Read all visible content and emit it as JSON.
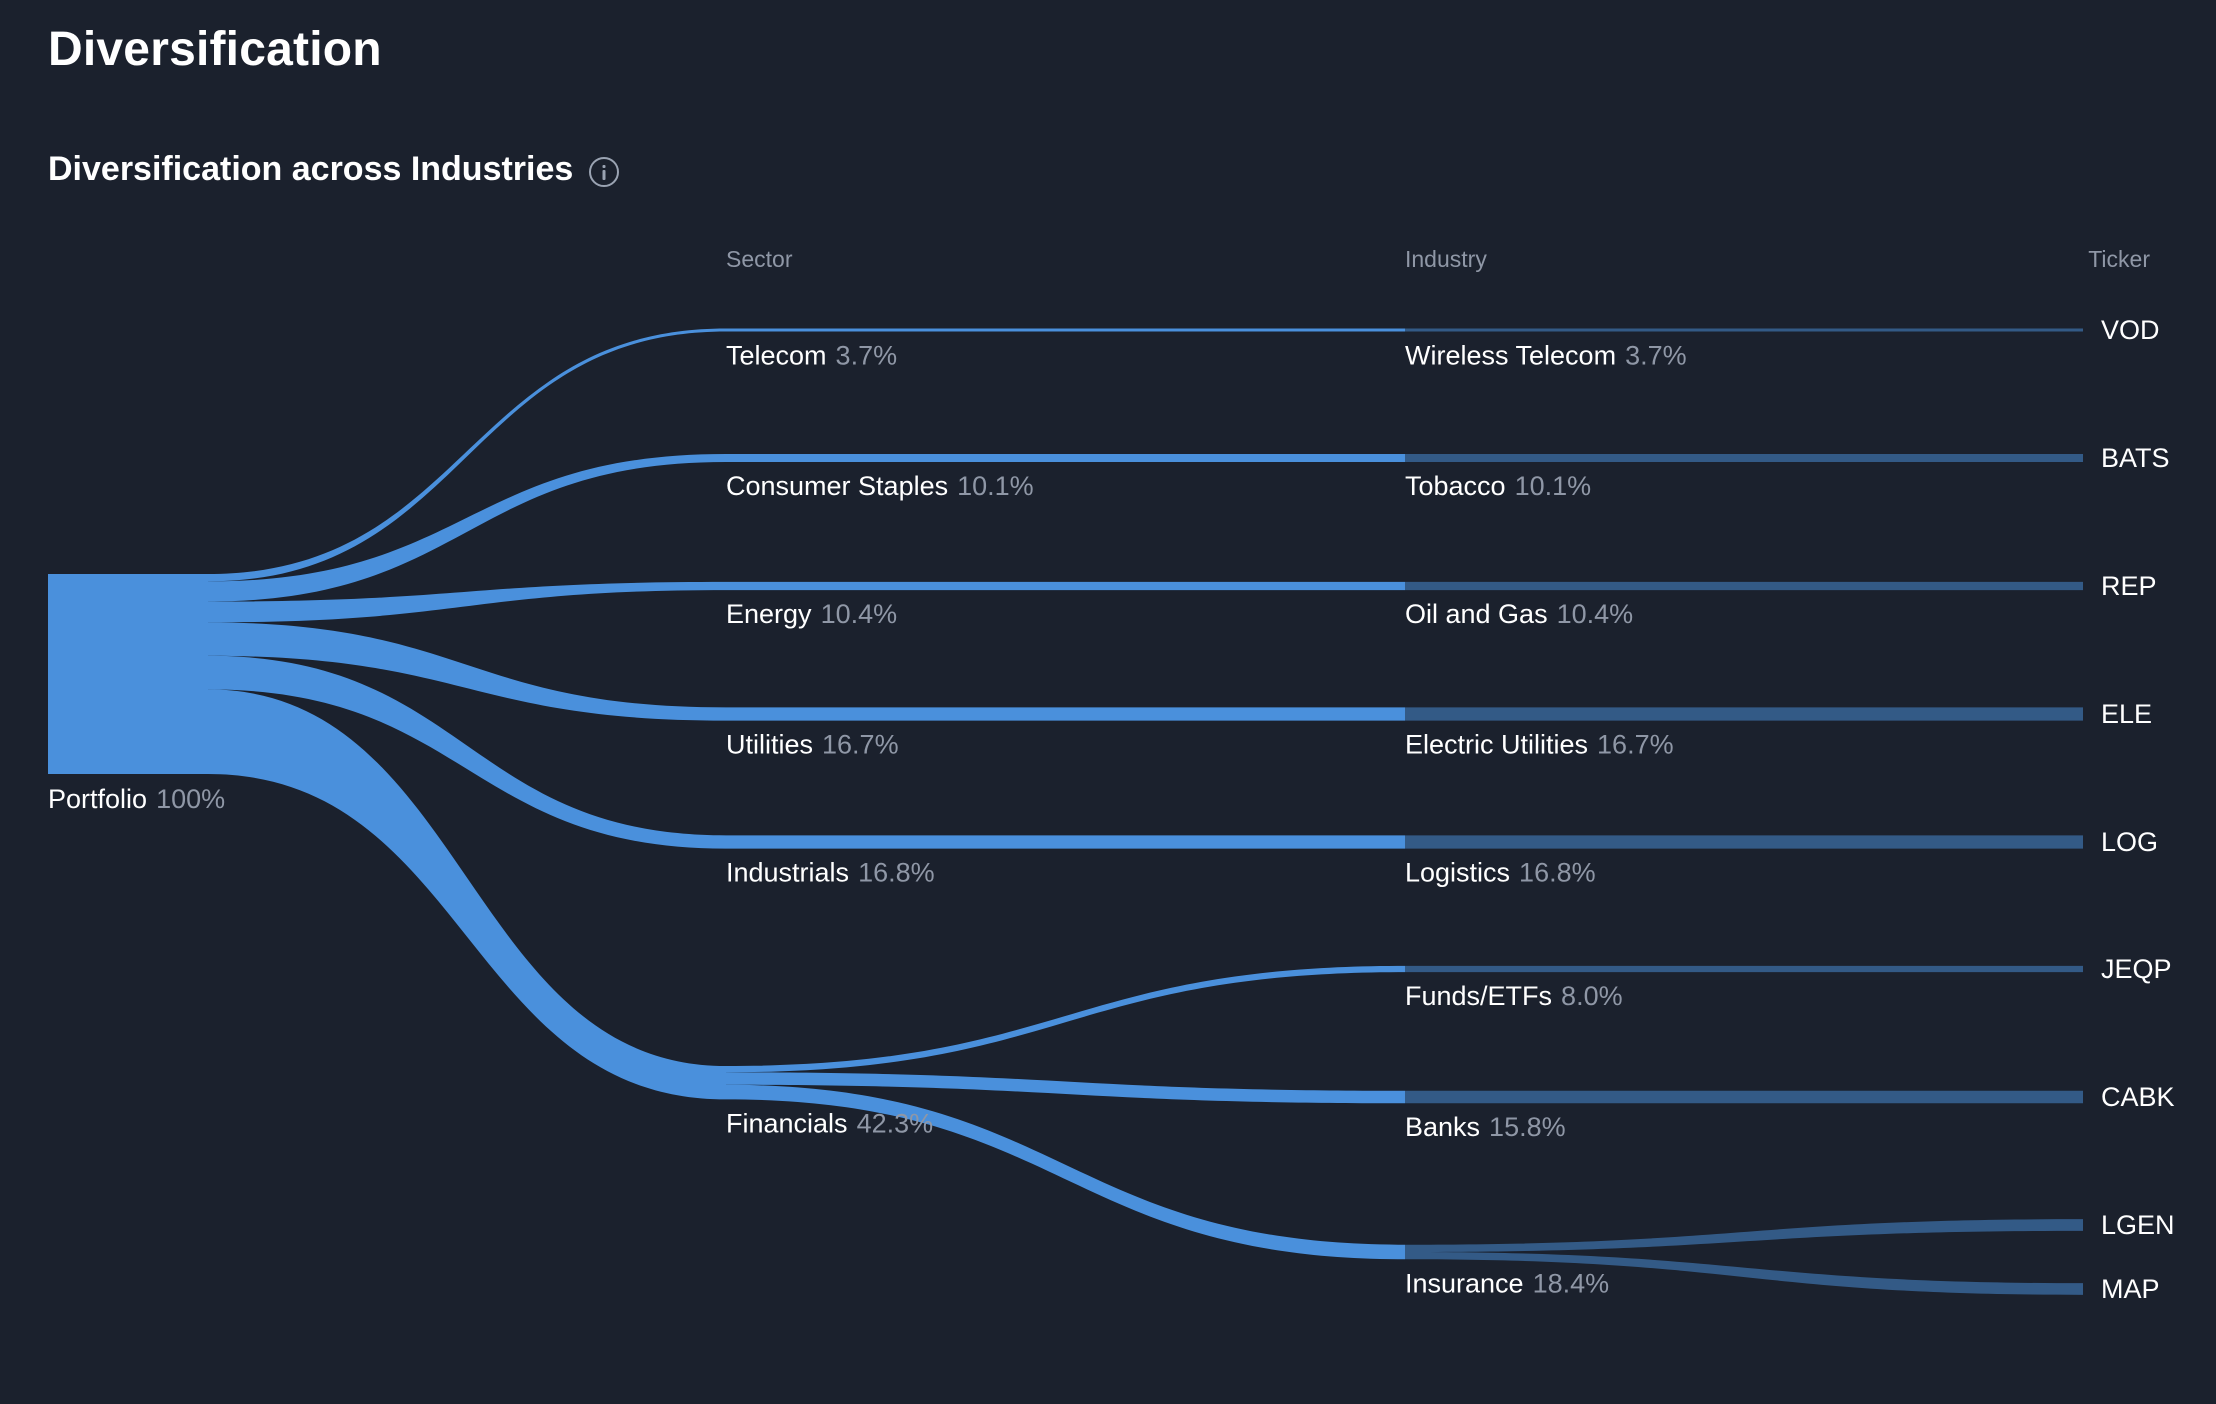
{
  "page": {
    "title": "Diversification",
    "section_title": "Diversification across Industries",
    "info_icon": "info-icon"
  },
  "colors": {
    "background": "#1b212d",
    "sector_flow": "#4a90dc",
    "industry_flow": "#335a86",
    "muted_text": "#8f97a6"
  },
  "chart_data": {
    "type": "sankey",
    "columns": [
      "Sector",
      "Industry",
      "Ticker"
    ],
    "root": {
      "label": "Portfolio",
      "pct": "100%"
    },
    "sectors": [
      {
        "label": "Telecom",
        "pct": "3.7%",
        "value": 3.7
      },
      {
        "label": "Consumer Staples",
        "pct": "10.1%",
        "value": 10.1
      },
      {
        "label": "Energy",
        "pct": "10.4%",
        "value": 10.4
      },
      {
        "label": "Utilities",
        "pct": "16.7%",
        "value": 16.7
      },
      {
        "label": "Industrials",
        "pct": "16.8%",
        "value": 16.8
      },
      {
        "label": "Financials",
        "pct": "42.3%",
        "value": 42.3
      }
    ],
    "industries": [
      {
        "label": "Wireless Telecom",
        "pct": "3.7%",
        "value": 3.7,
        "sector": "Telecom"
      },
      {
        "label": "Tobacco",
        "pct": "10.1%",
        "value": 10.1,
        "sector": "Consumer Staples"
      },
      {
        "label": "Oil and Gas",
        "pct": "10.4%",
        "value": 10.4,
        "sector": "Energy"
      },
      {
        "label": "Electric Utilities",
        "pct": "16.7%",
        "value": 16.7,
        "sector": "Utilities"
      },
      {
        "label": "Logistics",
        "pct": "16.8%",
        "value": 16.8,
        "sector": "Industrials"
      },
      {
        "label": "Funds/ETFs",
        "pct": "8.0%",
        "value": 8.0,
        "sector": "Financials"
      },
      {
        "label": "Banks",
        "pct": "15.8%",
        "value": 15.8,
        "sector": "Financials"
      },
      {
        "label": "Insurance",
        "pct": "18.4%",
        "value": 18.4,
        "sector": "Financials"
      }
    ],
    "tickers": [
      {
        "label": "VOD",
        "industry": "Wireless Telecom",
        "value": 3.7
      },
      {
        "label": "BATS",
        "industry": "Tobacco",
        "value": 10.1
      },
      {
        "label": "REP",
        "industry": "Oil and Gas",
        "value": 10.4
      },
      {
        "label": "ELE",
        "industry": "Electric Utilities",
        "value": 16.7
      },
      {
        "label": "LOG",
        "industry": "Logistics",
        "value": 16.8
      },
      {
        "label": "JEQP",
        "industry": "Funds/ETFs",
        "value": 8.0
      },
      {
        "label": "CABK",
        "industry": "Banks",
        "value": 15.8
      },
      {
        "label": "LGEN",
        "industry": "Insurance",
        "value": 9.2
      },
      {
        "label": "MAP",
        "industry": "Insurance",
        "value": 9.2
      }
    ]
  }
}
